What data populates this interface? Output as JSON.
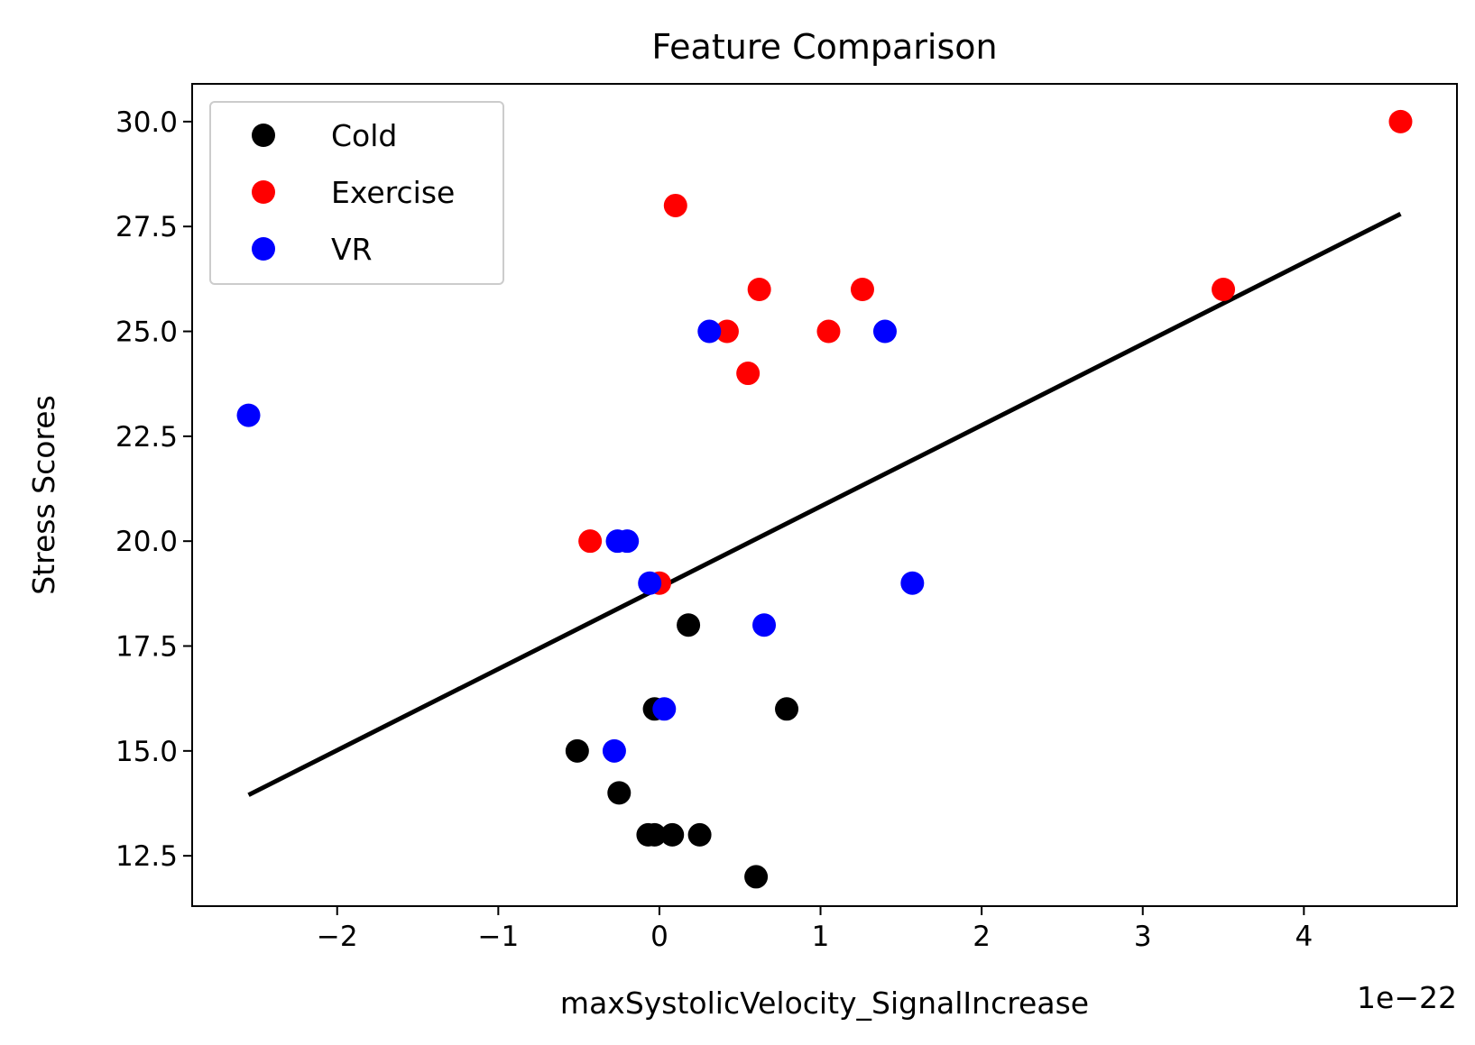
{
  "chart_data": {
    "type": "scatter",
    "title": "Feature Comparison",
    "xlabel": "maxSystolicVelocity_SignalIncrease",
    "ylabel": "Stress Scores",
    "x_offset_text": "1e−22",
    "xlim": [
      -2.9,
      4.95
    ],
    "ylim": [
      11.3,
      30.9
    ],
    "x_ticks": [
      -2,
      -1,
      0,
      1,
      2,
      3,
      4
    ],
    "x_tick_labels": [
      "−2",
      "−1",
      "0",
      "1",
      "2",
      "3",
      "4"
    ],
    "y_ticks": [
      12.5,
      15.0,
      17.5,
      20.0,
      22.5,
      25.0,
      27.5,
      30.0
    ],
    "y_tick_labels": [
      "12.5",
      "15.0",
      "17.5",
      "20.0",
      "22.5",
      "25.0",
      "27.5",
      "30.0"
    ],
    "grid": false,
    "legend_position": "top-left",
    "series": [
      {
        "name": "Cold",
        "color": "#000000",
        "points": [
          {
            "x": 0.18,
            "y": 18
          },
          {
            "x": -0.03,
            "y": 16
          },
          {
            "x": 0.79,
            "y": 16
          },
          {
            "x": -0.51,
            "y": 15
          },
          {
            "x": -0.25,
            "y": 14
          },
          {
            "x": -0.07,
            "y": 13
          },
          {
            "x": -0.03,
            "y": 13
          },
          {
            "x": 0.08,
            "y": 13
          },
          {
            "x": 0.25,
            "y": 13
          },
          {
            "x": 0.6,
            "y": 12
          }
        ]
      },
      {
        "name": "Exercise",
        "color": "#ff0000",
        "points": [
          {
            "x": 4.6,
            "y": 30
          },
          {
            "x": 0.1,
            "y": 28
          },
          {
            "x": 0.62,
            "y": 26
          },
          {
            "x": 1.26,
            "y": 26
          },
          {
            "x": 3.5,
            "y": 26
          },
          {
            "x": 0.42,
            "y": 25
          },
          {
            "x": 1.05,
            "y": 25
          },
          {
            "x": 0.55,
            "y": 24
          },
          {
            "x": -0.43,
            "y": 20
          },
          {
            "x": 0.0,
            "y": 19
          }
        ]
      },
      {
        "name": "VR",
        "color": "#0000ff",
        "points": [
          {
            "x": 0.31,
            "y": 25
          },
          {
            "x": 1.4,
            "y": 25
          },
          {
            "x": -2.55,
            "y": 23
          },
          {
            "x": -0.26,
            "y": 20
          },
          {
            "x": -0.2,
            "y": 20
          },
          {
            "x": -0.06,
            "y": 19
          },
          {
            "x": 1.57,
            "y": 19
          },
          {
            "x": 0.65,
            "y": 18
          },
          {
            "x": 0.03,
            "y": 16
          },
          {
            "x": -0.28,
            "y": 15
          }
        ]
      }
    ],
    "fit_line": {
      "color": "#000000",
      "x": [
        -2.55,
        4.6
      ],
      "y": [
        13.95,
        27.8
      ]
    }
  }
}
